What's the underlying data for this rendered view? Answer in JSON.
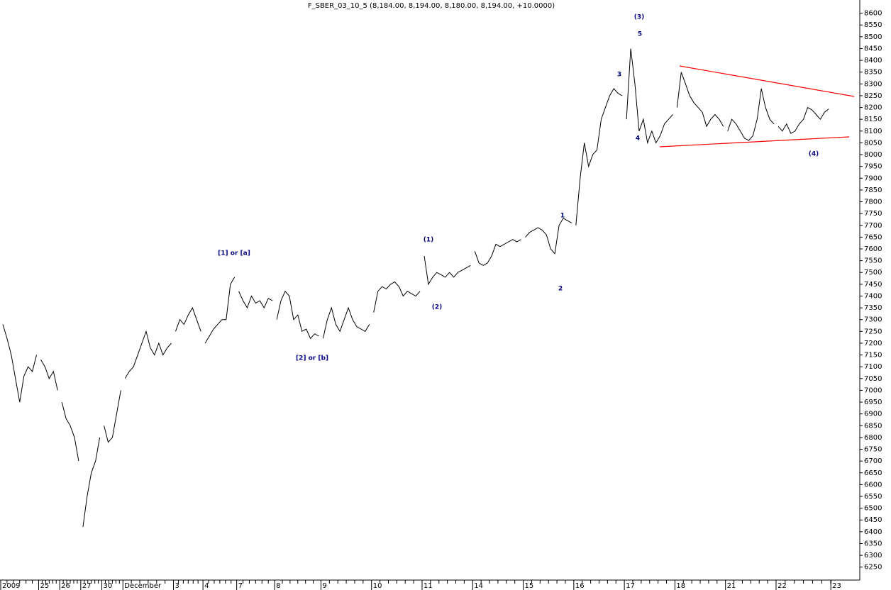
{
  "chart_data": {
    "type": "intraday",
    "title": "F_SBER_03_10_5 (8,184.00, 8,194.00, 8,180.00, 8,194.00, +10.0000)",
    "categories": [
      "2009",
      "25",
      "26",
      "27",
      "30",
      "December",
      "3",
      "4",
      "7",
      "8",
      "9",
      "10",
      "11",
      "14",
      "15",
      "16",
      "17",
      "18",
      "21",
      "22",
      "23"
    ],
    "values": [
      [
        7280,
        7220,
        7150,
        7050,
        6950,
        7060,
        7100,
        7080,
        7150
      ],
      [
        7130,
        7100,
        7050,
        7080,
        7000
      ],
      [
        6950,
        6880,
        6850,
        6800,
        6700
      ],
      [
        6420,
        6550,
        6650,
        6700,
        6800
      ],
      [
        6850,
        6780,
        6800,
        6900,
        7000
      ],
      [
        7050,
        7080,
        7100,
        7150,
        7200,
        7250,
        7180,
        7150,
        7200,
        7150,
        7180,
        7200
      ],
      [
        7250,
        7300,
        7280,
        7320,
        7350,
        7300,
        7250
      ],
      [
        7200,
        7230,
        7260,
        7280,
        7300,
        7300,
        7450,
        7480
      ],
      [
        7420,
        7380,
        7350,
        7400,
        7370,
        7380,
        7350,
        7390,
        7380
      ],
      [
        7300,
        7380,
        7420,
        7400,
        7300,
        7320,
        7250,
        7260,
        7220,
        7240,
        7230
      ],
      [
        7220,
        7300,
        7350,
        7280,
        7250,
        7300,
        7350,
        7300,
        7270,
        7260,
        7250,
        7280
      ],
      [
        7330,
        7420,
        7440,
        7430,
        7450,
        7460,
        7440,
        7400,
        7420,
        7410,
        7400,
        7420
      ],
      [
        7570,
        7450,
        7480,
        7500,
        7490,
        7480,
        7500,
        7480,
        7500,
        7510,
        7520,
        7530
      ],
      [
        7590,
        7540,
        7530,
        7540,
        7570,
        7620,
        7610,
        7620,
        7630,
        7640,
        7630,
        7640
      ],
      [
        7650,
        7670,
        7680,
        7690,
        7680,
        7660,
        7600,
        7580,
        7700,
        7730,
        7720,
        7710
      ],
      [
        7700,
        7900,
        8050,
        7950,
        8000,
        8020,
        8150,
        8200,
        8250,
        8280,
        8260,
        8250
      ],
      [
        8150,
        8450,
        8300,
        8100,
        8150,
        8050,
        8100,
        8050,
        8080,
        8130,
        8150,
        8170
      ],
      [
        8200,
        8350,
        8300,
        8250,
        8220,
        8200,
        8180,
        8120,
        8150,
        8170,
        8150,
        8120
      ],
      [
        8100,
        8150,
        8130,
        8100,
        8070,
        8060,
        8080,
        8150,
        8280,
        8200,
        8150,
        8130
      ],
      [
        8120,
        8100,
        8130,
        8090,
        8100,
        8130,
        8150,
        8200,
        8190,
        8170,
        8150,
        8180,
        8194
      ],
      []
    ],
    "color": "#000000",
    "ylim": [
      6195,
      8650
    ],
    "yticks": [
      6250,
      6300,
      6350,
      6400,
      6450,
      6500,
      6550,
      6600,
      6650,
      6700,
      6750,
      6800,
      6850,
      6900,
      6950,
      7000,
      7050,
      7100,
      7150,
      7200,
      7250,
      7300,
      7350,
      7400,
      7450,
      7500,
      7550,
      7600,
      7650,
      7700,
      7750,
      7800,
      7850,
      7900,
      7950,
      8000,
      8050,
      8100,
      8150,
      8200,
      8250,
      8300,
      8350,
      8400,
      8450,
      8500,
      8550,
      8600
    ],
    "annotations": [
      "[1] or [a]",
      "[2] or [b]",
      "(1)",
      "(2)",
      "1",
      "2",
      "3",
      "(3)",
      "5",
      "4",
      "(4)"
    ]
  }
}
